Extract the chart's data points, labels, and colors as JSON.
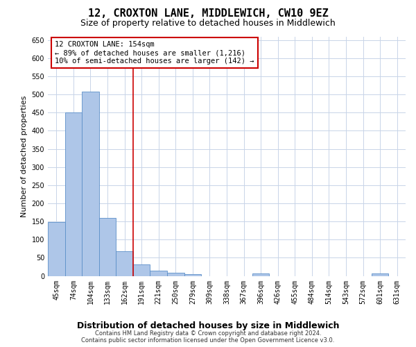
{
  "title": "12, CROXTON LANE, MIDDLEWICH, CW10 9EZ",
  "subtitle": "Size of property relative to detached houses in Middlewich",
  "xlabel": "Distribution of detached houses by size in Middlewich",
  "ylabel": "Number of detached properties",
  "categories": [
    "45sqm",
    "74sqm",
    "104sqm",
    "133sqm",
    "162sqm",
    "191sqm",
    "221sqm",
    "250sqm",
    "279sqm",
    "309sqm",
    "338sqm",
    "367sqm",
    "396sqm",
    "426sqm",
    "455sqm",
    "484sqm",
    "514sqm",
    "543sqm",
    "572sqm",
    "601sqm",
    "631sqm"
  ],
  "values": [
    148,
    450,
    507,
    160,
    68,
    31,
    14,
    9,
    4,
    0,
    0,
    0,
    6,
    0,
    0,
    0,
    0,
    0,
    0,
    6,
    0
  ],
  "bar_color": "#aec6e8",
  "bar_edge_color": "#5b8fc9",
  "vline_x": 4.5,
  "vline_color": "#cc0000",
  "annotation_text": "12 CROXTON LANE: 154sqm\n← 89% of detached houses are smaller (1,216)\n10% of semi-detached houses are larger (142) →",
  "annotation_box_color": "#ffffff",
  "annotation_box_edge": "#cc0000",
  "ylim": [
    0,
    660
  ],
  "yticks": [
    0,
    50,
    100,
    150,
    200,
    250,
    300,
    350,
    400,
    450,
    500,
    550,
    600,
    650
  ],
  "bg_color": "#ffffff",
  "grid_color": "#c8d4e8",
  "footer": "Contains HM Land Registry data © Crown copyright and database right 2024.\nContains public sector information licensed under the Open Government Licence v3.0.",
  "title_fontsize": 11,
  "subtitle_fontsize": 9,
  "ylabel_fontsize": 8,
  "xlabel_fontsize": 9,
  "tick_fontsize": 7,
  "footer_fontsize": 6,
  "annotation_fontsize": 7.5
}
